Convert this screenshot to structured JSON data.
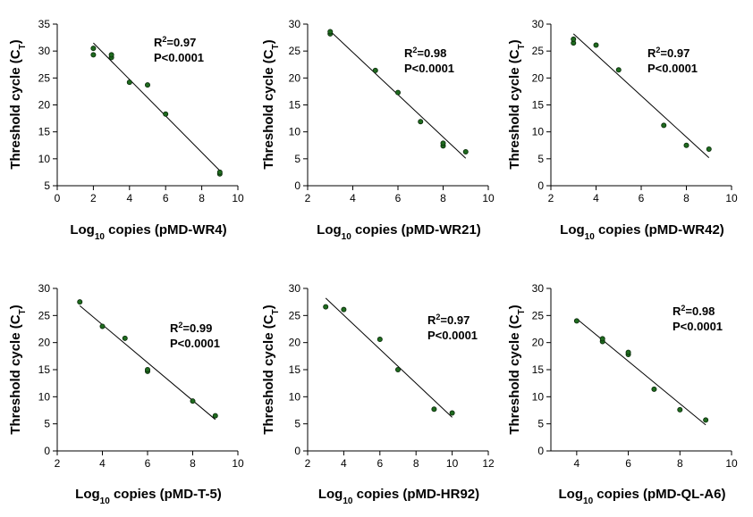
{
  "chart_data": [
    {
      "type": "scatter",
      "xlabel": {
        "prefix": "Log",
        "sub": "10",
        "rest": " copies (pMD-WR4)"
      },
      "ylabel": {
        "prefix": "Threshold cycle (C",
        "sub": "T",
        "suffix": ")"
      },
      "xlim": [
        0,
        10
      ],
      "ylim": [
        5,
        35
      ],
      "xticks": [
        0,
        2,
        4,
        6,
        8,
        10
      ],
      "yticks": [
        5,
        10,
        15,
        20,
        25,
        30,
        35
      ],
      "points": [
        [
          2,
          29.3
        ],
        [
          2,
          30.5
        ],
        [
          3,
          28.8
        ],
        [
          3,
          29.3
        ],
        [
          4,
          24.2
        ],
        [
          5,
          23.7
        ],
        [
          6,
          18.3
        ],
        [
          9,
          7.2
        ],
        [
          9,
          7.5
        ]
      ],
      "fit": [
        [
          2,
          31.5
        ],
        [
          9,
          7.8
        ]
      ],
      "annotation": {
        "r2_prefix": "R",
        "r2_sup": "2",
        "r2_value": "=0.97",
        "p": "P<0.0001"
      }
    },
    {
      "type": "scatter",
      "xlabel": {
        "prefix": "Log",
        "sub": "10",
        "rest": " copies (pMD-WR21)"
      },
      "ylabel": {
        "prefix": "Threshold cycle (C",
        "sub": "T",
        "suffix": ")"
      },
      "xlim": [
        2,
        10
      ],
      "ylim": [
        0,
        30
      ],
      "xticks": [
        2,
        4,
        6,
        8,
        10
      ],
      "yticks": [
        0,
        5,
        10,
        15,
        20,
        25,
        30
      ],
      "points": [
        [
          3,
          28.2
        ],
        [
          3,
          28.6
        ],
        [
          5,
          21.4
        ],
        [
          6,
          17.3
        ],
        [
          7,
          11.9
        ],
        [
          8,
          7.4
        ],
        [
          8,
          7.9
        ],
        [
          9,
          6.3
        ]
      ],
      "fit": [
        [
          3,
          28.7
        ],
        [
          9,
          5.1
        ]
      ],
      "annotation": {
        "r2_prefix": "R",
        "r2_sup": "2",
        "r2_value": "=0.98",
        "p": "P<0.0001"
      }
    },
    {
      "type": "scatter",
      "xlabel": {
        "prefix": "Log",
        "sub": "10",
        "rest": " copies (pMD-WR42)"
      },
      "ylabel": {
        "prefix": "Threshold cycle (C",
        "sub": "T",
        "suffix": ")"
      },
      "xlim": [
        2,
        10
      ],
      "ylim": [
        0,
        30
      ],
      "xticks": [
        2,
        4,
        6,
        8,
        10
      ],
      "yticks": [
        0,
        5,
        10,
        15,
        20,
        25,
        30
      ],
      "points": [
        [
          3,
          26.5
        ],
        [
          3,
          27.2
        ],
        [
          4,
          26.1
        ],
        [
          5,
          21.5
        ],
        [
          7,
          11.2
        ],
        [
          8,
          7.5
        ],
        [
          9,
          6.8
        ]
      ],
      "fit": [
        [
          3,
          28.2
        ],
        [
          9,
          5.2
        ]
      ],
      "annotation": {
        "r2_prefix": "R",
        "r2_sup": "2",
        "r2_value": "=0.97",
        "p": "P<0.0001"
      }
    },
    {
      "type": "scatter",
      "xlabel": {
        "prefix": "Log",
        "sub": "10",
        "rest": " copies (pMD-T-5)"
      },
      "ylabel": {
        "prefix": "Threshold cycle (C",
        "sub": "T",
        "suffix": ")"
      },
      "xlim": [
        2,
        10
      ],
      "ylim": [
        0,
        30
      ],
      "xticks": [
        2,
        4,
        6,
        8,
        10
      ],
      "yticks": [
        0,
        5,
        10,
        15,
        20,
        25,
        30
      ],
      "points": [
        [
          3,
          27.5
        ],
        [
          4,
          23.0
        ],
        [
          5,
          20.8
        ],
        [
          6,
          14.7
        ],
        [
          6,
          15.0
        ],
        [
          8,
          9.2
        ],
        [
          9,
          6.5
        ]
      ],
      "fit": [
        [
          3,
          26.8
        ],
        [
          9,
          5.8
        ]
      ],
      "annotation": {
        "r2_prefix": "R",
        "r2_sup": "2",
        "r2_value": "=0.99",
        "p": "P<0.0001"
      }
    },
    {
      "type": "scatter",
      "xlabel": {
        "prefix": "Log",
        "sub": "10",
        "rest": " copies (pMD-HR92)"
      },
      "ylabel": {
        "prefix": "Threshold cycle (C",
        "sub": "T",
        "suffix": ")"
      },
      "xlim": [
        2,
        12
      ],
      "ylim": [
        0,
        30
      ],
      "xticks": [
        2,
        4,
        6,
        8,
        10,
        12
      ],
      "yticks": [
        0,
        5,
        10,
        15,
        20,
        25,
        30
      ],
      "points": [
        [
          3,
          26.6
        ],
        [
          4,
          26.1
        ],
        [
          6,
          20.6
        ],
        [
          7,
          15.0
        ],
        [
          9,
          7.7
        ],
        [
          10,
          7.0
        ]
      ],
      "fit": [
        [
          3,
          28.2
        ],
        [
          10,
          6.2
        ]
      ],
      "annotation": {
        "r2_prefix": "R",
        "r2_sup": "2",
        "r2_value": "=0.97",
        "p": "P<0.0001"
      }
    },
    {
      "type": "scatter",
      "xlabel": {
        "prefix": "Log",
        "sub": "10",
        "rest": " copies (pMD-QL-A6)"
      },
      "ylabel": {
        "prefix": "Threshold cycle (C",
        "sub": "T",
        "suffix": ")"
      },
      "xlim": [
        3,
        10
      ],
      "ylim": [
        0,
        30
      ],
      "xticks": [
        4,
        6,
        8,
        10
      ],
      "yticks": [
        0,
        5,
        10,
        15,
        20,
        25,
        30
      ],
      "points": [
        [
          4,
          24.0
        ],
        [
          5,
          20.2
        ],
        [
          5,
          20.7
        ],
        [
          6,
          17.8
        ],
        [
          6,
          18.2
        ],
        [
          7,
          11.4
        ],
        [
          8,
          7.6
        ],
        [
          9,
          5.7
        ]
      ],
      "fit": [
        [
          4,
          24.4
        ],
        [
          9,
          4.8
        ]
      ],
      "annotation": {
        "r2_prefix": "R",
        "r2_sup": "2",
        "r2_value": "=0.98",
        "p": "P<0.0001"
      }
    }
  ]
}
